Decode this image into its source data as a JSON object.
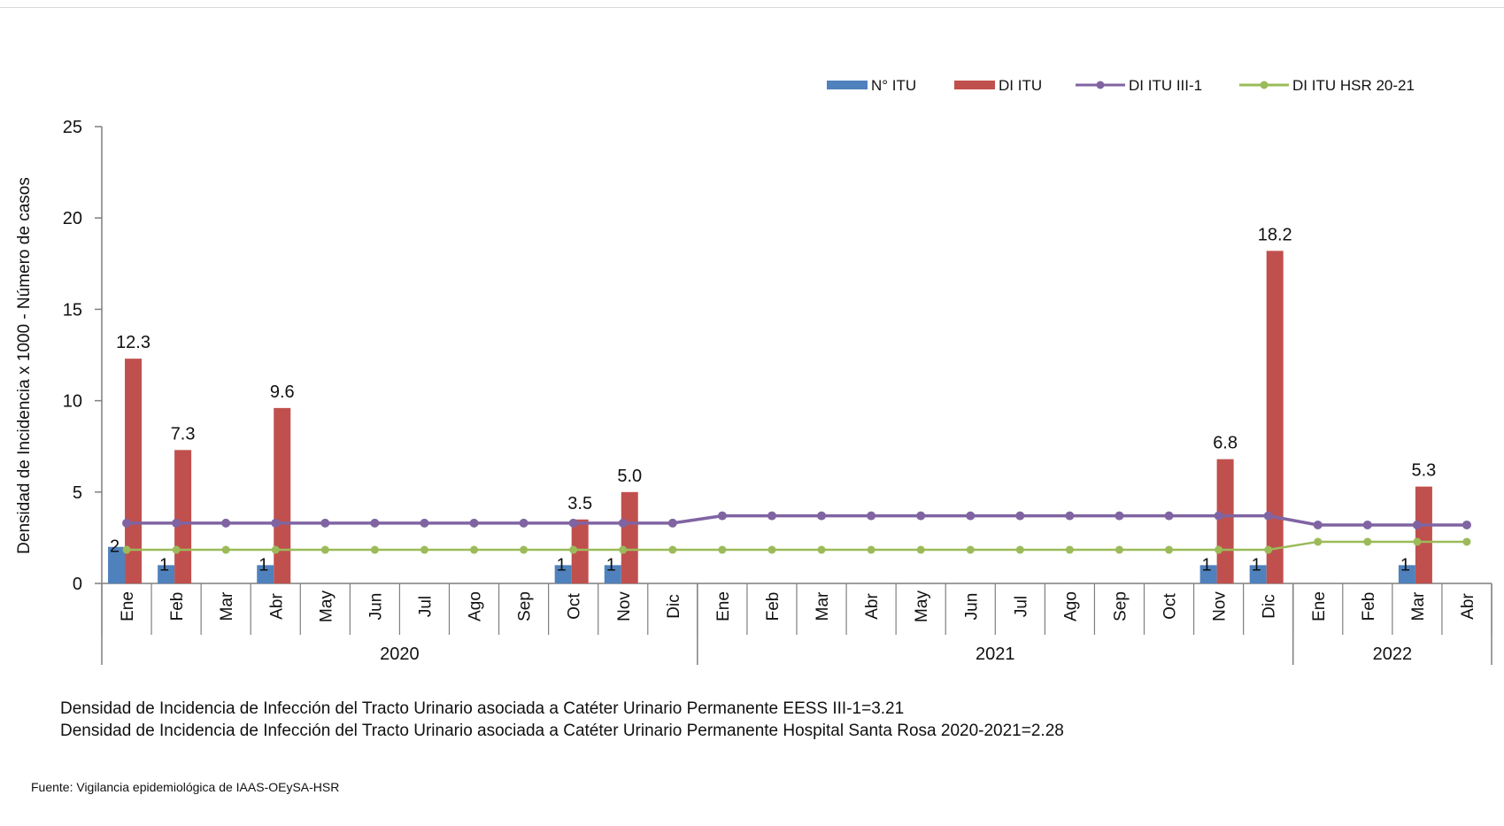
{
  "chart_data": {
    "type": "bar",
    "ylabel": "Densidad de Incidencia x 1000  - Número de casos",
    "ylim": [
      0,
      25
    ],
    "yticks": [
      0,
      5,
      10,
      15,
      20,
      25
    ],
    "months": [
      "Ene",
      "Feb",
      "Mar",
      "Abr",
      "May",
      "Jun",
      "Jul",
      "Ago",
      "Sep",
      "Oct",
      "Nov",
      "Dic",
      "Ene",
      "Feb",
      "Mar",
      "Abr",
      "May",
      "Jun",
      "Jul",
      "Ago",
      "Sep",
      "Oct",
      "Nov",
      "Dic",
      "Ene",
      "Feb",
      "Mar",
      "Abr"
    ],
    "years": [
      {
        "label": "2020",
        "count": 12
      },
      {
        "label": "2021",
        "count": 12
      },
      {
        "label": "2022",
        "count": 4
      }
    ],
    "series": [
      {
        "name": "N° ITU",
        "kind": "bar",
        "color": "#4f81bd",
        "values": [
          2,
          1,
          null,
          1,
          null,
          null,
          null,
          null,
          null,
          1,
          1,
          null,
          null,
          null,
          null,
          null,
          null,
          null,
          null,
          null,
          null,
          null,
          1,
          1,
          null,
          null,
          1,
          null
        ],
        "labels": [
          "2",
          "1",
          "",
          "1",
          "",
          "",
          "",
          "",
          "",
          "1",
          "1",
          "",
          "",
          "",
          "",
          "",
          "",
          "",
          "",
          "",
          "",
          "",
          "1",
          "1",
          "",
          "",
          "1",
          ""
        ]
      },
      {
        "name": "DI ITU",
        "kind": "bar",
        "color": "#c0504d",
        "values": [
          12.3,
          7.3,
          null,
          9.6,
          null,
          null,
          null,
          null,
          null,
          3.5,
          5.0,
          null,
          null,
          null,
          null,
          null,
          null,
          null,
          null,
          null,
          null,
          null,
          6.8,
          18.2,
          null,
          null,
          5.3,
          null
        ],
        "labels": [
          "12.3",
          "7.3",
          "",
          "9.6",
          "",
          "",
          "",
          "",
          "",
          "3.5",
          "5.0",
          "",
          "",
          "",
          "",
          "",
          "",
          "",
          "",
          "",
          "",
          "",
          "6.8",
          "18.2",
          "",
          "",
          "5.3",
          ""
        ]
      },
      {
        "name": "DI ITU III-1",
        "kind": "line",
        "color": "#8064a2",
        "values": [
          3.3,
          3.3,
          3.3,
          3.3,
          3.3,
          3.3,
          3.3,
          3.3,
          3.3,
          3.3,
          3.3,
          3.3,
          3.7,
          3.7,
          3.7,
          3.7,
          3.7,
          3.7,
          3.7,
          3.7,
          3.7,
          3.7,
          3.7,
          3.7,
          3.2,
          3.2,
          3.2,
          3.2
        ]
      },
      {
        "name": "DI ITU HSR  20-21",
        "kind": "line",
        "color": "#9bbb59",
        "values": [
          1.84,
          1.84,
          1.84,
          1.84,
          1.84,
          1.84,
          1.84,
          1.84,
          1.84,
          1.84,
          1.84,
          1.84,
          1.84,
          1.84,
          1.84,
          1.84,
          1.84,
          1.84,
          1.84,
          1.84,
          1.84,
          1.84,
          1.84,
          1.84,
          2.28,
          2.28,
          2.28,
          2.28
        ]
      }
    ]
  },
  "notes": [
    "Densidad de Incidencia de Infección del Tracto Urinario asociada a  Catéter Urinario Permanente  EESS III-1=3.21",
    "Densidad de Incidencia de Infección del  Tracto Urinario asociada a Catéter Urinario Permanente Hospital Santa Rosa  2020-2021=2.28"
  ],
  "source": "Fuente: Vigilancia epidemiológica de IAAS-OEySA-HSR"
}
